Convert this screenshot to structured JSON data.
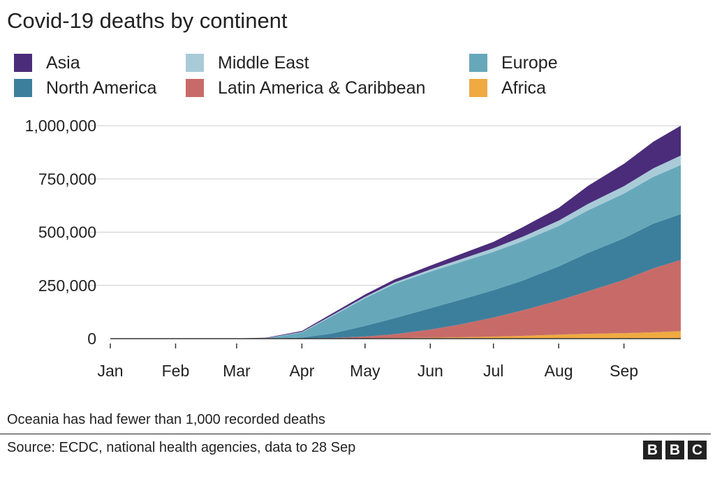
{
  "title": "Covid-19 deaths by continent",
  "note": "Oceania has had fewer than 1,000 recorded deaths",
  "source": "Source: ECDC, national health agencies, data to 28 Sep",
  "logo": [
    "B",
    "B",
    "C"
  ],
  "legend": [
    {
      "label": "Asia",
      "color": "#4b2c7a"
    },
    {
      "label": "Middle East",
      "color": "#a9cbd8"
    },
    {
      "label": "Europe",
      "color": "#66a8ba"
    },
    {
      "label": "North America",
      "color": "#3c7f9c"
    },
    {
      "label": "Latin America & Caribbean",
      "color": "#c86b68"
    },
    {
      "label": "Africa",
      "color": "#efaa42"
    }
  ],
  "chart_data": {
    "type": "area",
    "stacked": true,
    "title": "Covid-19 deaths by continent",
    "x": [
      "2020-01-01",
      "2020-02-01",
      "2020-03-01",
      "2020-03-15",
      "2020-04-01",
      "2020-04-15",
      "2020-05-01",
      "2020-05-15",
      "2020-06-01",
      "2020-06-15",
      "2020-07-01",
      "2020-07-15",
      "2020-08-01",
      "2020-08-15",
      "2020-09-01",
      "2020-09-15",
      "2020-09-28"
    ],
    "x_tick_labels": [
      "Jan",
      "Feb",
      "Mar",
      "Apr",
      "May",
      "Jun",
      "Jul",
      "Aug",
      "Sep"
    ],
    "x_tick_dates": [
      "2020-01-01",
      "2020-02-01",
      "2020-03-01",
      "2020-04-01",
      "2020-05-01",
      "2020-06-01",
      "2020-07-01",
      "2020-08-01",
      "2020-09-01"
    ],
    "ylim": [
      0,
      1000000
    ],
    "y_ticks": [
      0,
      250000,
      500000,
      750000,
      1000000
    ],
    "y_tick_labels": [
      "0",
      "250,000",
      "500,000",
      "750,000",
      "1,000,000"
    ],
    "grid": true,
    "legend_position": "top",
    "series": [
      {
        "name": "Africa",
        "values": [
          0,
          0,
          0,
          0,
          200,
          700,
          1800,
          3000,
          4500,
          6500,
          9500,
          13000,
          19000,
          23000,
          26000,
          30000,
          35000
        ]
      },
      {
        "name": "Latin America & Caribbean",
        "values": [
          0,
          0,
          0,
          0,
          800,
          2500,
          8000,
          18000,
          38000,
          60000,
          90000,
          120000,
          160000,
          200000,
          250000,
          300000,
          335000
        ]
      },
      {
        "name": "North America",
        "values": [
          0,
          0,
          0,
          200,
          4000,
          20000,
          50000,
          75000,
          100000,
          115000,
          128000,
          140000,
          160000,
          180000,
          195000,
          210000,
          215000
        ]
      },
      {
        "name": "Europe",
        "values": [
          0,
          0,
          0,
          1500,
          24000,
          80000,
          130000,
          160000,
          172000,
          177000,
          180000,
          185000,
          190000,
          200000,
          210000,
          220000,
          230000
        ]
      },
      {
        "name": "Middle East",
        "values": [
          0,
          0,
          0,
          500,
          2500,
          5000,
          6500,
          8000,
          10000,
          13000,
          17000,
          21000,
          25000,
          30000,
          35000,
          40000,
          45000
        ]
      },
      {
        "name": "Asia",
        "values": [
          0,
          0,
          1000,
          2500,
          4500,
          8000,
          11000,
          14000,
          18000,
          24000,
          30000,
          45000,
          60000,
          85000,
          105000,
          125000,
          140000
        ]
      }
    ]
  }
}
